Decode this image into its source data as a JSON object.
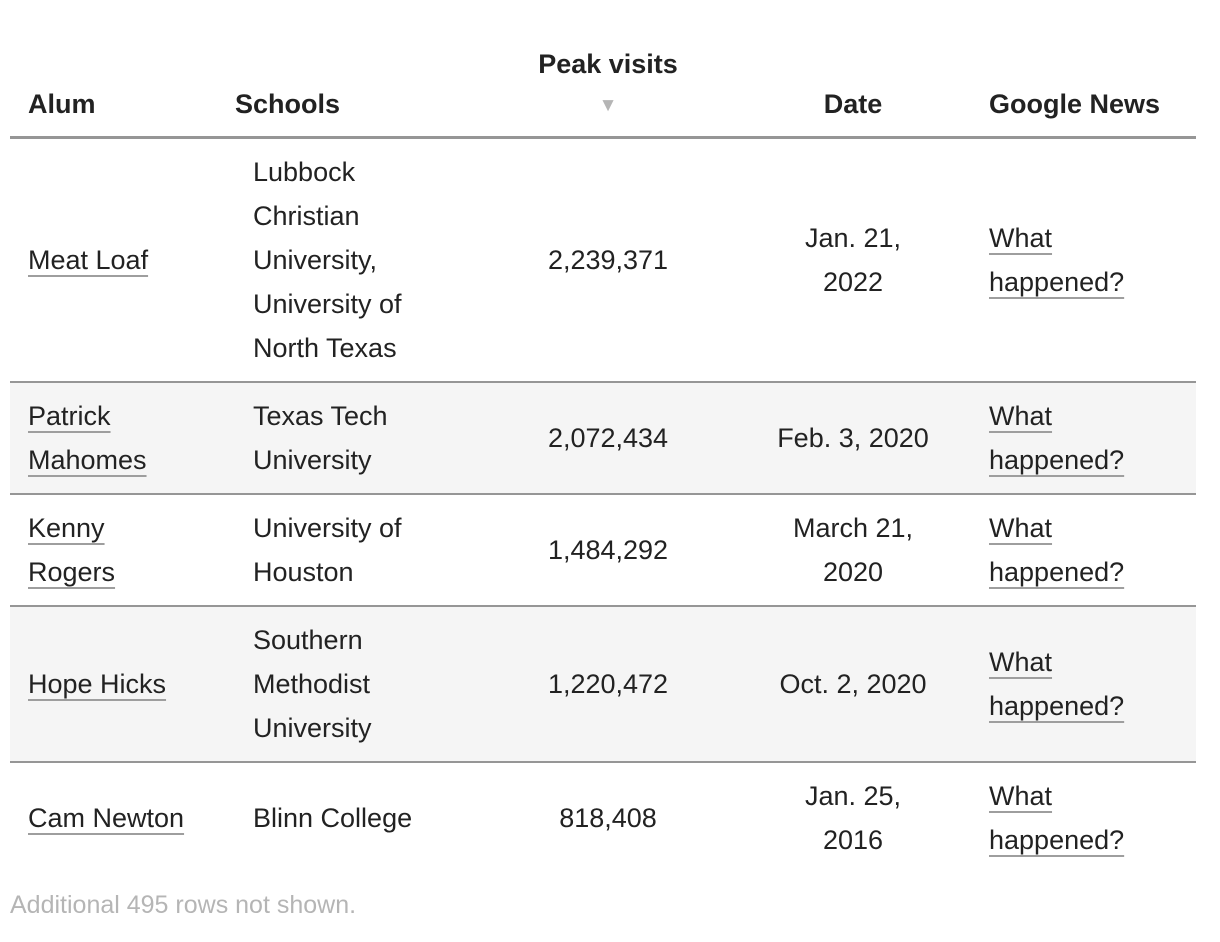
{
  "table": {
    "columns": [
      {
        "label": "Alum",
        "align": "left",
        "sorted": false
      },
      {
        "label": "Schools",
        "align": "left",
        "sorted": false
      },
      {
        "label": "Peak visits",
        "align": "center",
        "sorted": true
      },
      {
        "label": "Date",
        "align": "center",
        "sorted": false
      },
      {
        "label": "Google News",
        "align": "left",
        "sorted": false
      }
    ],
    "sort_indicator": "▼",
    "rows": [
      {
        "alum": "Meat Loaf",
        "schools": "Lubbock Christian University, University of North Texas",
        "peak_visits": "2,239,371",
        "date": "Jan. 21, 2022",
        "google_news": "What happened?"
      },
      {
        "alum": "Patrick Mahomes",
        "schools": "Texas Tech University",
        "peak_visits": "2,072,434",
        "date": "Feb. 3, 2020",
        "google_news": "What happened?"
      },
      {
        "alum": "Kenny Rogers",
        "schools": "University of Houston",
        "peak_visits": "1,484,292",
        "date": "March 21, 2020",
        "google_news": "What happened?"
      },
      {
        "alum": "Hope Hicks",
        "schools": "Southern Methodist University",
        "peak_visits": "1,220,472",
        "date": "Oct. 2, 2020",
        "google_news": "What happened?"
      },
      {
        "alum": "Cam Newton",
        "schools": "Blinn College",
        "peak_visits": "818,408",
        "date": "Jan. 25, 2016",
        "google_news": "What happened?"
      }
    ],
    "footer_note": "Additional 495 rows not shown."
  },
  "colors": {
    "text": "#222222",
    "border": "#969696",
    "row_stripe": "#f5f5f5",
    "link_underline": "#9e9e9e",
    "muted": "#b5b5b5"
  }
}
